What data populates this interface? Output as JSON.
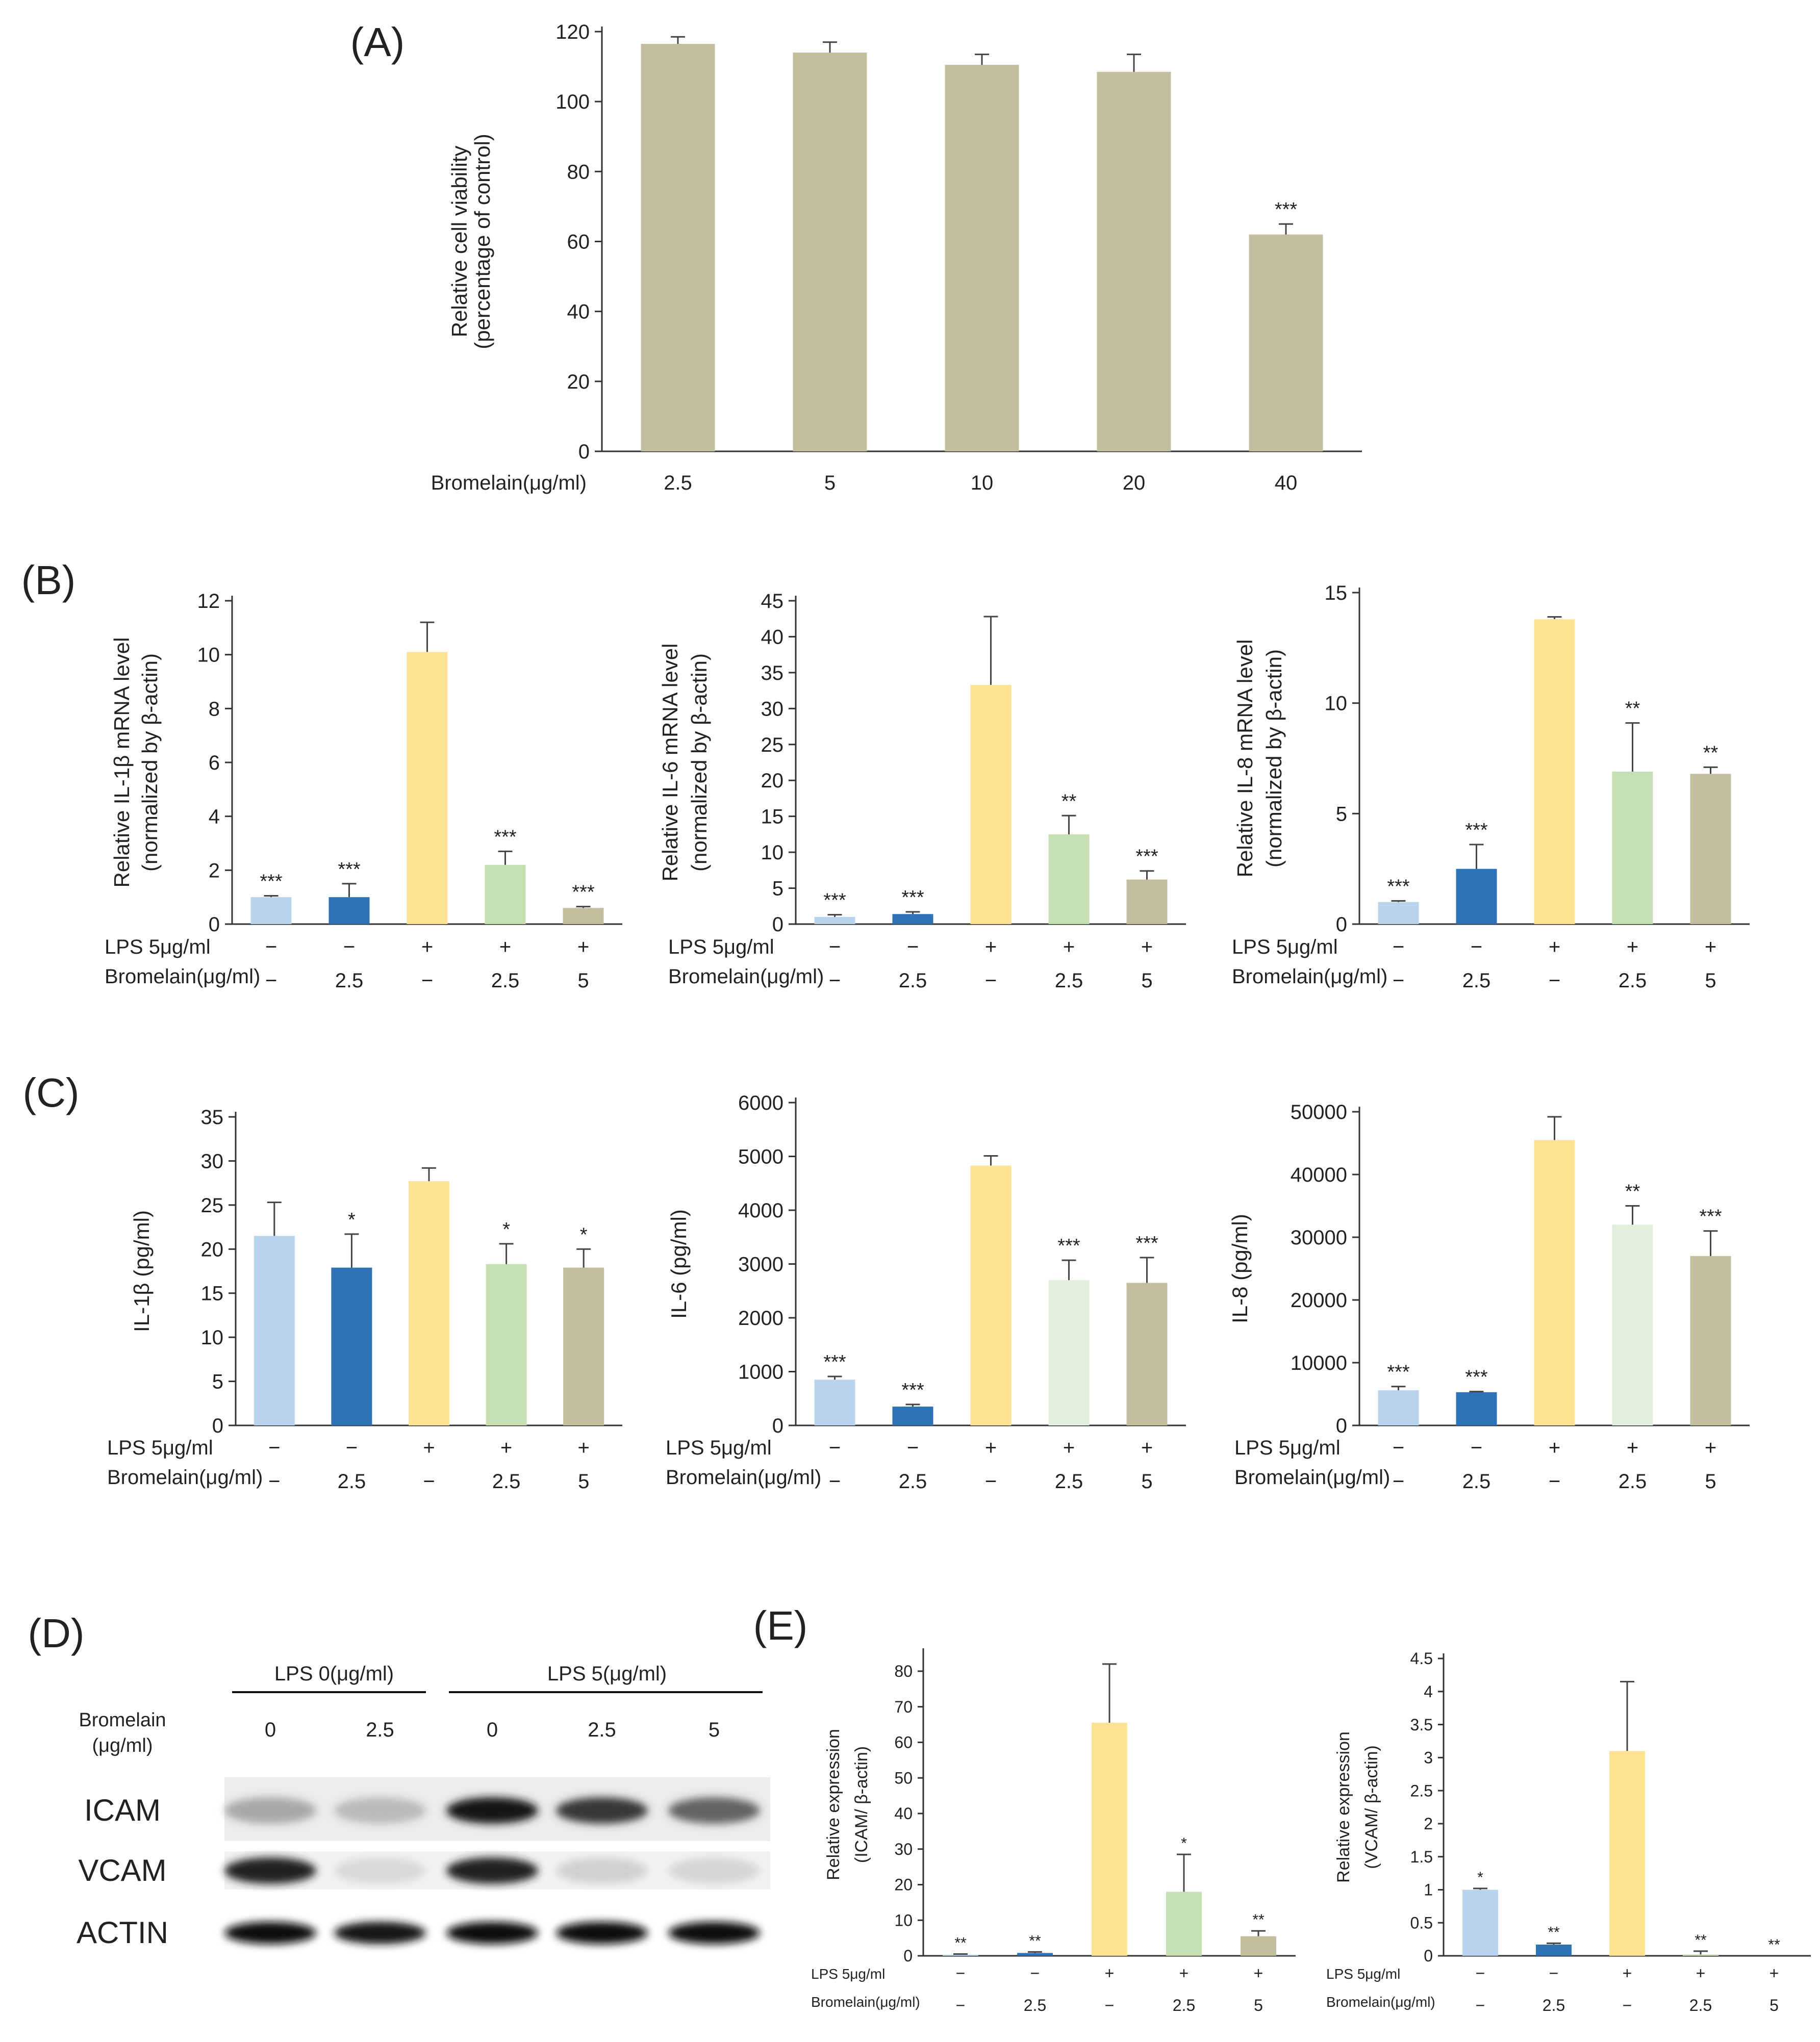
{
  "figure": {
    "colors": {
      "light_blue": "#b9d3ec",
      "blue": "#2f72b8",
      "yellow": "#fde393",
      "green": "#c6e0b4",
      "pale_green": "#e2efda",
      "khaki": "#c1bf9e",
      "axis": "#333333",
      "text": "#222222"
    }
  },
  "chart_data": [
    {
      "id": "A",
      "type": "bar",
      "panel_label": "(A)",
      "title": "",
      "ylabel_lines": [
        "Relative cell viability",
        "(percentage of control)"
      ],
      "xlabel": "Bromelain(μg/ml)",
      "categories": [
        "2.5",
        "5",
        "10",
        "20",
        "40"
      ],
      "values": [
        116.5,
        114,
        110.5,
        108.5,
        62
      ],
      "errors": [
        2,
        3,
        3,
        5,
        3
      ],
      "sig": [
        "",
        "",
        "",
        "",
        "***"
      ],
      "colors": [
        "khaki",
        "khaki",
        "khaki",
        "khaki",
        "khaki"
      ],
      "ylim": [
        0,
        120
      ],
      "yticks": [
        "0",
        "20",
        "40",
        "60",
        "80",
        "100",
        "120"
      ],
      "grid": false
    },
    {
      "id": "B1",
      "type": "bar",
      "panel_label": "(B)",
      "ylabel_lines": [
        "Relative IL-1β mRNA level",
        "(normalized by β-actin)"
      ],
      "row_labels": [
        "LPS 5μg/ml",
        "Bromelain(μg/ml)"
      ],
      "lps": [
        "−",
        "−",
        "+",
        "+",
        "+"
      ],
      "bromelain": [
        "−",
        "2.5",
        "−",
        "2.5",
        "5"
      ],
      "values": [
        1.0,
        1.0,
        10.1,
        2.2,
        0.6
      ],
      "errors": [
        0.05,
        0.5,
        1.1,
        0.5,
        0.05
      ],
      "sig": [
        "***",
        "***",
        "",
        "***",
        "***"
      ],
      "colors": [
        "light_blue",
        "blue",
        "yellow",
        "green",
        "khaki"
      ],
      "ylim": [
        0,
        12
      ],
      "yticks": [
        "0",
        "2",
        "4",
        "6",
        "8",
        "10",
        "12"
      ],
      "grid": false
    },
    {
      "id": "B2",
      "type": "bar",
      "panel_label": "",
      "ylabel_lines": [
        "Relative IL-6 mRNA level",
        "(normalized by β-actin)"
      ],
      "row_labels": [
        "LPS 5μg/ml",
        "Bromelain(μg/ml)"
      ],
      "lps": [
        "−",
        "−",
        "+",
        "+",
        "+"
      ],
      "bromelain": [
        "−",
        "2.5",
        "−",
        "2.5",
        "5"
      ],
      "values": [
        1.0,
        1.4,
        33.3,
        12.5,
        6.2
      ],
      "errors": [
        0.3,
        0.3,
        9.5,
        2.6,
        1.2
      ],
      "sig": [
        "***",
        "***",
        "",
        "**",
        "***"
      ],
      "colors": [
        "light_blue",
        "blue",
        "yellow",
        "green",
        "khaki"
      ],
      "ylim": [
        0,
        45
      ],
      "yticks": [
        "0",
        "5",
        "10",
        "15",
        "20",
        "25",
        "30",
        "35",
        "40",
        "45"
      ],
      "grid": false
    },
    {
      "id": "B3",
      "type": "bar",
      "panel_label": "",
      "ylabel_lines": [
        "Relative IL-8 mRNA level",
        "(normalized by β-actin)"
      ],
      "row_labels": [
        "LPS 5μg/ml",
        "Bromelain(μg/ml)"
      ],
      "lps": [
        "−",
        "−",
        "+",
        "+",
        "+"
      ],
      "bromelain": [
        "−",
        "2.5",
        "−",
        "2.5",
        "5"
      ],
      "values": [
        1.0,
        2.5,
        13.8,
        6.9,
        6.8
      ],
      "errors": [
        0.05,
        1.1,
        0.1,
        2.2,
        0.3
      ],
      "sig": [
        "***",
        "***",
        "",
        "**",
        "**"
      ],
      "colors": [
        "light_blue",
        "blue",
        "yellow",
        "green",
        "khaki"
      ],
      "ylim": [
        0,
        15
      ],
      "yticks": [
        "0",
        "5",
        "10",
        "15"
      ],
      "grid": false
    },
    {
      "id": "C1",
      "type": "bar",
      "panel_label": "(C)",
      "ylabel_lines": [
        "IL-1β (pg/ml)"
      ],
      "row_labels": [
        "LPS 5μg/ml",
        "Bromelain(μg/ml)"
      ],
      "lps": [
        "−",
        "−",
        "+",
        "+",
        "+"
      ],
      "bromelain": [
        "−",
        "2.5",
        "−",
        "2.5",
        "5"
      ],
      "values": [
        21.5,
        17.9,
        27.7,
        18.3,
        17.9
      ],
      "errors": [
        3.8,
        3.8,
        1.5,
        2.3,
        2.1
      ],
      "sig": [
        "",
        "*",
        "",
        "*",
        "*"
      ],
      "colors": [
        "light_blue",
        "blue",
        "yellow",
        "green",
        "khaki"
      ],
      "ylim": [
        0,
        35
      ],
      "yticks": [
        "0",
        "5",
        "10",
        "15",
        "20",
        "25",
        "30",
        "35"
      ],
      "grid": false
    },
    {
      "id": "C2",
      "type": "bar",
      "panel_label": "",
      "ylabel_lines": [
        "IL-6 (pg/ml)"
      ],
      "row_labels": [
        "LPS 5μg/ml",
        "Bromelain(μg/ml)"
      ],
      "lps": [
        "−",
        "−",
        "+",
        "+",
        "+"
      ],
      "bromelain": [
        "−",
        "2.5",
        "−",
        "2.5",
        "5"
      ],
      "values": [
        850,
        350,
        4830,
        2700,
        2650
      ],
      "errors": [
        60,
        40,
        180,
        370,
        470
      ],
      "sig": [
        "***",
        "***",
        "",
        "***",
        "***"
      ],
      "colors": [
        "light_blue",
        "blue",
        "yellow",
        "pale_green",
        "khaki"
      ],
      "ylim": [
        0,
        6000
      ],
      "yticks": [
        "0",
        "1000",
        "2000",
        "3000",
        "4000",
        "5000",
        "6000"
      ],
      "grid": false
    },
    {
      "id": "C3",
      "type": "bar",
      "panel_label": "",
      "ylabel_lines": [
        "IL-8 (pg/ml)"
      ],
      "row_labels": [
        "LPS 5μg/ml",
        "Bromelain(μg/ml)"
      ],
      "lps": [
        "−",
        "−",
        "+",
        "+",
        "+"
      ],
      "bromelain": [
        "−",
        "2.5",
        "−",
        "2.5",
        "5"
      ],
      "values": [
        5600,
        5300,
        45500,
        32000,
        27000
      ],
      "errors": [
        600,
        100,
        3700,
        3000,
        4000
      ],
      "sig": [
        "***",
        "***",
        "",
        "**",
        "***"
      ],
      "colors": [
        "light_blue",
        "blue",
        "yellow",
        "pale_green",
        "khaki"
      ],
      "ylim": [
        0,
        50000
      ],
      "yticks": [
        "0",
        "10000",
        "20000",
        "30000",
        "40000",
        "50000"
      ],
      "grid": false
    },
    {
      "id": "E1",
      "type": "bar",
      "panel_label": "(E)",
      "ylabel_lines": [
        "Relative expression",
        "(ICAM/ β-actin)"
      ],
      "row_labels": [
        "LPS 5μg/ml",
        "Bromelain(μg/ml)"
      ],
      "lps": [
        "−",
        "−",
        "+",
        "+",
        "+"
      ],
      "bromelain": [
        "−",
        "2.5",
        "−",
        "2.5",
        "5"
      ],
      "values": [
        0.3,
        0.8,
        65.5,
        18,
        5.5
      ],
      "errors": [
        0.2,
        0.3,
        16.5,
        10.5,
        1.5
      ],
      "sig": [
        "**",
        "**",
        "",
        "*",
        "**"
      ],
      "colors": [
        "light_blue",
        "blue",
        "yellow",
        "green",
        "khaki"
      ],
      "ylim": [
        0,
        85
      ],
      "yticks": [
        "0",
        "10",
        "20",
        "30",
        "40",
        "50",
        "60",
        "70",
        "80"
      ],
      "grid": false
    },
    {
      "id": "E2",
      "type": "bar",
      "panel_label": "",
      "ylabel_lines": [
        "Relative expression",
        "(VCAM/ β-actin)"
      ],
      "row_labels": [
        "LPS 5μg/ml",
        "Bromelain(μg/ml)"
      ],
      "lps": [
        "−",
        "−",
        "+",
        "+",
        "+"
      ],
      "bromelain": [
        "−",
        "2.5",
        "−",
        "2.5",
        "5"
      ],
      "values": [
        1.0,
        0.17,
        3.1,
        0.02,
        0.0
      ],
      "errors": [
        0.02,
        0.02,
        1.05,
        0.05,
        0.0
      ],
      "sig": [
        "*",
        "**",
        "",
        "**",
        "**"
      ],
      "colors": [
        "light_blue",
        "blue",
        "yellow",
        "green",
        "khaki"
      ],
      "ylim": [
        0,
        4.5
      ],
      "yticks": [
        "0",
        "0.5",
        "1",
        "1.5",
        "2",
        "2.5",
        "3",
        "3.5",
        "4",
        "4.5"
      ],
      "grid": false
    }
  ],
  "blot": {
    "panel_label": "(D)",
    "group_labels": [
      "LPS 0(μg/ml)",
      "LPS 5(μg/ml)"
    ],
    "treatment_label_lines": [
      "Bromelain",
      "(μg/ml)"
    ],
    "lane_values": [
      "0",
      "2.5",
      "0",
      "2.5",
      "5"
    ],
    "rows": [
      {
        "name": "ICAM",
        "intensities": [
          0.3,
          0.22,
          0.95,
          0.8,
          0.6
        ]
      },
      {
        "name": "VCAM",
        "intensities": [
          0.9,
          0.08,
          0.9,
          0.12,
          0.1
        ]
      },
      {
        "name": "ACTIN",
        "intensities": [
          0.97,
          0.95,
          0.97,
          0.97,
          0.97
        ]
      }
    ]
  }
}
